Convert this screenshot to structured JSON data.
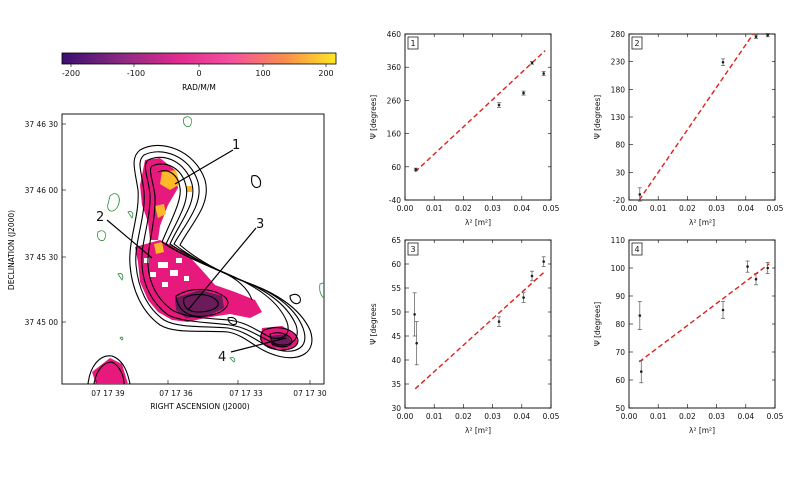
{
  "colorbar": {
    "ticks": [
      "-200",
      "-100",
      "0",
      "100",
      "200"
    ],
    "label": "RAD/M/M",
    "range": [
      -220,
      220
    ],
    "colors": [
      "#3b0f70",
      "#8c2981",
      "#de2b8e",
      "#f3529e",
      "#f98f4a",
      "#fde725"
    ]
  },
  "map": {
    "ylabel": "DECLINATION (J2000)",
    "xlabel": "RIGHT ASCENSION (J2000)",
    "yticks": [
      "37 46 30",
      "37 46 00",
      "37 45 30",
      "37 45 00"
    ],
    "xticks": [
      "07 17 39",
      "07 17 36",
      "07 17 33",
      "07 17 30"
    ],
    "region_labels": [
      "1",
      "2",
      "3",
      "4"
    ],
    "colors": {
      "contour": "#000000",
      "negative_contour": "#2e8b3a",
      "rm": "#e8197d"
    }
  },
  "chart_data": [
    {
      "type": "scatter",
      "panel": "1",
      "xlabel": "λ² [m²]",
      "ylabel": "Ψ [degrees]",
      "xlim": [
        0.0,
        0.05
      ],
      "ylim": [
        -40,
        460
      ],
      "xticks": [
        "0.00",
        "0.01",
        "0.02",
        "0.03",
        "0.04",
        "0.05"
      ],
      "yticks": [
        "-40",
        "60",
        "160",
        "260",
        "360",
        "460"
      ],
      "points": [
        {
          "x": 0.0037,
          "y": 52,
          "err": 4
        },
        {
          "x": 0.0322,
          "y": 246,
          "err": 7
        },
        {
          "x": 0.0406,
          "y": 282,
          "err": 6
        },
        {
          "x": 0.0435,
          "y": 373,
          "err": 4
        },
        {
          "x": 0.0475,
          "y": 341,
          "err": 6
        }
      ],
      "fit": [
        [
          0.0035,
          45
        ],
        [
          0.048,
          410
        ]
      ]
    },
    {
      "type": "scatter",
      "panel": "2",
      "xlabel": "λ² [m²]",
      "ylabel": "Ψ [degrees]",
      "xlim": [
        0.0,
        0.05
      ],
      "ylim": [
        -20,
        280
      ],
      "xticks": [
        "0.00",
        "0.01",
        "0.02",
        "0.03",
        "0.04",
        "0.05"
      ],
      "yticks": [
        "-20",
        "30",
        "80",
        "130",
        "180",
        "230",
        "280"
      ],
      "points": [
        {
          "x": 0.0037,
          "y": -10,
          "err": 12
        },
        {
          "x": 0.0322,
          "y": 229,
          "err": 6
        },
        {
          "x": 0.0435,
          "y": 275,
          "err": 3
        },
        {
          "x": 0.0475,
          "y": 278,
          "err": 3
        }
      ],
      "fit": [
        [
          0.0035,
          -20
        ],
        [
          0.0425,
          280
        ]
      ]
    },
    {
      "type": "scatter",
      "panel": "3",
      "xlabel": "λ² [m²]",
      "ylabel": "Ψ [degrees",
      "xlim": [
        0.0,
        0.05
      ],
      "ylim": [
        30,
        65
      ],
      "xticks": [
        "0.00",
        "0.01",
        "0.02",
        "0.03",
        "0.04",
        "0.05"
      ],
      "yticks": [
        "30",
        "35",
        "40",
        "45",
        "50",
        "55",
        "60",
        "65"
      ],
      "points": [
        {
          "x": 0.0033,
          "y": 49.5,
          "err": 4.5
        },
        {
          "x": 0.004,
          "y": 43.5,
          "err": 4.5
        },
        {
          "x": 0.0322,
          "y": 48,
          "err": 1.0
        },
        {
          "x": 0.0406,
          "y": 53,
          "err": 1.0
        },
        {
          "x": 0.0435,
          "y": 57.5,
          "err": 1.0
        },
        {
          "x": 0.0475,
          "y": 60.5,
          "err": 1.0
        }
      ],
      "fit": [
        [
          0.0035,
          34
        ],
        [
          0.048,
          58.5
        ]
      ]
    },
    {
      "type": "scatter",
      "panel": "4",
      "xlabel": "λ² [m²]",
      "ylabel": "Ψ [degrees]",
      "xlim": [
        0.0,
        0.05
      ],
      "ylim": [
        50,
        110
      ],
      "xticks": [
        "0.00",
        "0.01",
        "0.02",
        "0.03",
        "0.04",
        "0.05"
      ],
      "yticks": [
        "50",
        "60",
        "70",
        "80",
        "90",
        "100",
        "110"
      ],
      "points": [
        {
          "x": 0.0037,
          "y": 83,
          "err": 5
        },
        {
          "x": 0.0042,
          "y": 63,
          "err": 4
        },
        {
          "x": 0.0322,
          "y": 85,
          "err": 3
        },
        {
          "x": 0.0406,
          "y": 100.5,
          "err": 2
        },
        {
          "x": 0.0435,
          "y": 96,
          "err": 2
        },
        {
          "x": 0.0475,
          "y": 100,
          "err": 2
        }
      ],
      "fit": [
        [
          0.0035,
          66.5
        ],
        [
          0.048,
          101.5
        ]
      ]
    }
  ]
}
